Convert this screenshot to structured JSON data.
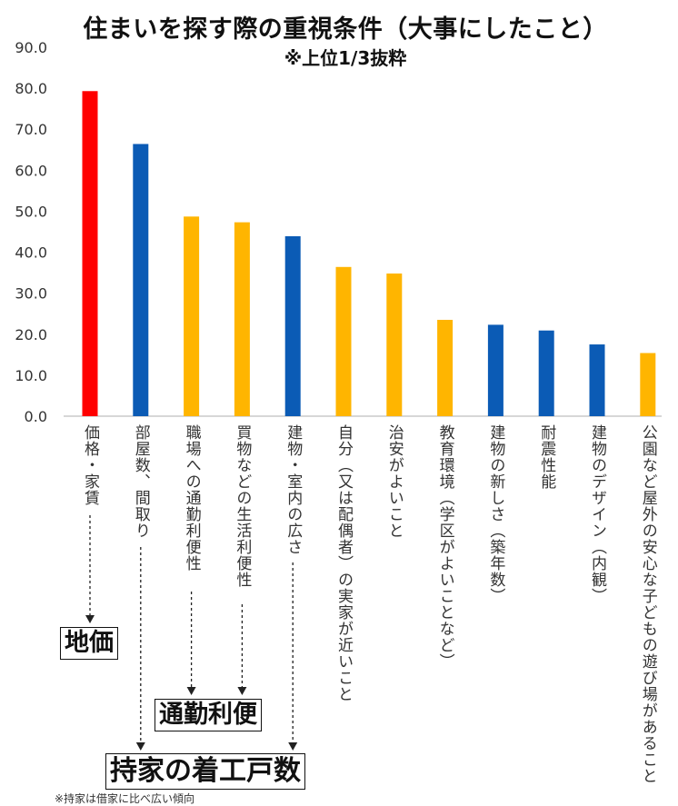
{
  "chart_data": {
    "type": "bar",
    "title": "住まいを探す際の重視条件（大事にしたこと）",
    "subtitle": "※上位1/3抜粋",
    "ylim": [
      0,
      90
    ],
    "yticks": [
      "0.0",
      "10.0",
      "20.0",
      "30.0",
      "40.0",
      "50.0",
      "60.0",
      "70.0",
      "80.0",
      "90.0"
    ],
    "categories": [
      "価格・家賃",
      "部屋数、間取り",
      "職場への通勤利便性",
      "買物などの生活利便性",
      "建物・室内の広さ",
      "自分（又は配偶者）の実家が近いこと",
      "治安がよいこと",
      "教育環境（学区がよいことなど）",
      "建物の新しさ（築年数）",
      "耐震性能",
      "建物のデザイン（内観）",
      "公園など屋外の安心な子どもの遊び場があること"
    ],
    "values": [
      79.3,
      66.4,
      48.7,
      47.3,
      43.9,
      36.4,
      34.8,
      23.5,
      22.3,
      20.9,
      17.5,
      15.4
    ],
    "colors": [
      "#ff0000",
      "#0b5bb5",
      "#ffb500",
      "#ffb500",
      "#0b5bb5",
      "#ffb500",
      "#ffb500",
      "#ffb500",
      "#0b5bb5",
      "#0b5bb5",
      "#0b5bb5",
      "#ffb500"
    ],
    "grid": false,
    "legend": "none"
  },
  "annotations": {
    "land_price": "地価",
    "commute": "通勤利便",
    "home_starts": "持家の着工戸数",
    "footnote": "※持家は借家に比べ広い傾向"
  }
}
